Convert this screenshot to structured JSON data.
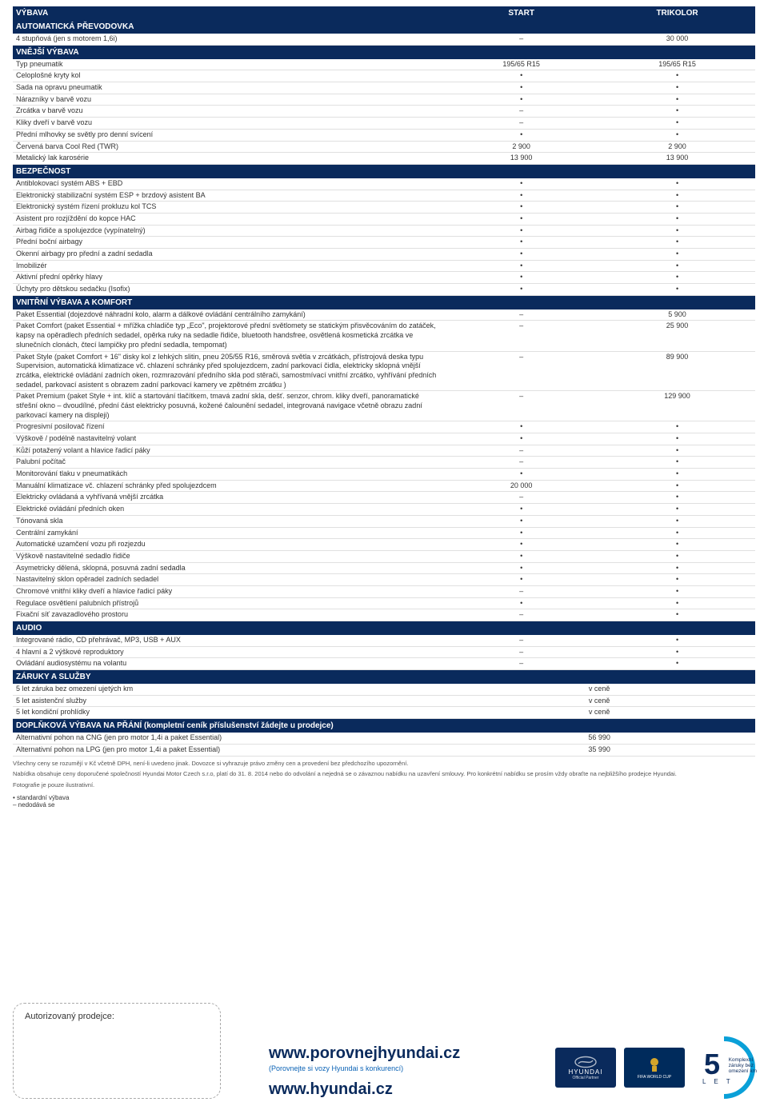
{
  "header": {
    "c0": "VÝBAVA",
    "c1": "START",
    "c2": "TRIKOLOR"
  },
  "sections": [
    {
      "title": "AUTOMATICKÁ PŘEVODOVKA",
      "rows": [
        {
          "label": "4 stupňová (jen s motorem 1,6i)",
          "v1": "–",
          "v2": "30 000"
        }
      ]
    },
    {
      "title": "VNĚJŠÍ VÝBAVA",
      "rows": [
        {
          "label": "Typ pneumatik",
          "v1": "195/65 R15",
          "v2": "195/65 R15"
        },
        {
          "label": "Celoplošné kryty kol",
          "v1": "•",
          "v2": "•"
        },
        {
          "label": "Sada na opravu pneumatik",
          "v1": "•",
          "v2": "•"
        },
        {
          "label": "Nárazníky v barvě vozu",
          "v1": "•",
          "v2": "•"
        },
        {
          "label": "Zrcátka v barvě vozu",
          "v1": "–",
          "v2": "•"
        },
        {
          "label": "Kliky dveří v barvě vozu",
          "v1": "–",
          "v2": "•"
        },
        {
          "label": "Přední mlhovky se světly pro denní svícení",
          "v1": "•",
          "v2": "•"
        },
        {
          "label": "Červená barva Cool Red (TWR)",
          "v1": "2 900",
          "v2": "2 900"
        },
        {
          "label": "Metalický lak karosérie",
          "v1": "13 900",
          "v2": "13 900"
        }
      ]
    },
    {
      "title": "BEZPEČNOST",
      "rows": [
        {
          "label": "Antiblokovací systém ABS + EBD",
          "v1": "•",
          "v2": "•"
        },
        {
          "label": "Elektronický stabilizační systém ESP + brzdový asistent BA",
          "v1": "•",
          "v2": "•"
        },
        {
          "label": "Elektronický systém řízení prokluzu kol TCS",
          "v1": "•",
          "v2": "•"
        },
        {
          "label": "Asistent pro rozjíždění do kopce HAC",
          "v1": "•",
          "v2": "•"
        },
        {
          "label": "Airbag řidiče a spolujezdce (vypínatelný)",
          "v1": "•",
          "v2": "•"
        },
        {
          "label": "Přední boční airbagy",
          "v1": "•",
          "v2": "•"
        },
        {
          "label": "Okenní airbagy pro přední a zadní sedadla",
          "v1": "•",
          "v2": "•"
        },
        {
          "label": "Imobilizér",
          "v1": "•",
          "v2": "•"
        },
        {
          "label": "Aktivní přední opěrky hlavy",
          "v1": "•",
          "v2": "•"
        },
        {
          "label": "Úchyty pro dětskou sedačku (Isofix)",
          "v1": "•",
          "v2": "•"
        }
      ]
    },
    {
      "title": "VNITŘNÍ VÝBAVA A KOMFORT",
      "rows": [
        {
          "label": "Paket Essential (dojezdové náhradní kolo, alarm a dálkové ovládání centrálního zamykání)",
          "v1": "–",
          "v2": "5 900"
        },
        {
          "label": "Paket Comfort (paket Essential + mřížka chladiče typ „Eco\", projektorové přední světlomety se statickým přisvěcováním do zatáček, kapsy na opěradlech předních sedadel, opěrka ruky na sedadle řidiče, bluetooth handsfree, osvětlená kosmetická zrcátka ve slunečních clonách, čtecí lampičky pro přední sedadla, tempomat)",
          "v1": "–",
          "v2": "25 900"
        },
        {
          "label": "Paket Style (paket Comfort + 16\" disky kol z lehkých slitin, pneu 205/55 R16, směrová světla v zrcátkách, přístrojová deska typu Supervision, automatická klimatizace vč. chlazení schránky před spolujezdcem, zadní parkovací čidla, elektricky sklopná vnější zrcátka, elektrické ovládání zadních oken, rozmrazování předního skla pod stěrači, samostmívací vnitřní zrcátko, vyhřívání předních sedadel, parkovací asistent s obrazem zadní parkovací kamery ve zpětném zrcátku )",
          "v1": "–",
          "v2": "89 900"
        },
        {
          "label": "Paket Premium (paket Style + int. klíč a startování tlačítkem, tmavá zadní skla, dešť. senzor, chrom. kliky dveří, panoramatické střešní okno – dvoudílné, přední část elektricky posuvná, kožené čalounění sedadel, integrovaná navigace včetně obrazu zadní parkovací kamery na displeji)",
          "v1": "–",
          "v2": "129 900"
        },
        {
          "label": "Progresivní posilovač řízení",
          "v1": "•",
          "v2": "•"
        },
        {
          "label": "Výškově / podélně nastavitelný volant",
          "v1": "•",
          "v2": "•"
        },
        {
          "label": "Kůží potažený volant a hlavice řadicí páky",
          "v1": "–",
          "v2": "•"
        },
        {
          "label": "Palubní počítač",
          "v1": "–",
          "v2": "•"
        },
        {
          "label": "Monitorování tlaku v pneumatikách",
          "v1": "•",
          "v2": "•"
        },
        {
          "label": "Manuální klimatizace vč. chlazení schránky před spolujezdcem",
          "v1": "20 000",
          "v2": "•"
        },
        {
          "label": "Elektricky ovládaná a vyhřívaná vnější zrcátka",
          "v1": "–",
          "v2": "•"
        },
        {
          "label": "Elektrické ovládání předních oken",
          "v1": "•",
          "v2": "•"
        },
        {
          "label": "Tónovaná skla",
          "v1": "•",
          "v2": "•"
        },
        {
          "label": "Centrální zamykání",
          "v1": "•",
          "v2": "•"
        },
        {
          "label": "Automatické uzamčení vozu při rozjezdu",
          "v1": "•",
          "v2": "•"
        },
        {
          "label": "Výškově nastavitelné sedadlo řidiče",
          "v1": "•",
          "v2": "•"
        },
        {
          "label": "Asymetricky dělená, sklopná, posuvná zadní sedadla",
          "v1": "•",
          "v2": "•"
        },
        {
          "label": "Nastavitelný sklon opěradel zadních sedadel",
          "v1": "•",
          "v2": "•"
        },
        {
          "label": "Chromové vnitřní kliky dveří a hlavice řadicí páky",
          "v1": "–",
          "v2": "•"
        },
        {
          "label": "Regulace osvětlení palubních přístrojů",
          "v1": "•",
          "v2": "•"
        },
        {
          "label": "Fixační síť zavazadlového prostoru",
          "v1": "–",
          "v2": "•"
        }
      ]
    },
    {
      "title": "AUDIO",
      "rows": [
        {
          "label": "Integrované rádio, CD přehrávač, MP3, USB + AUX",
          "v1": "–",
          "v2": "•"
        },
        {
          "label": "4 hlavní a 2 výškové reproduktory",
          "v1": "–",
          "v2": "•"
        },
        {
          "label": "Ovládání audiosystému na volantu",
          "v1": "–",
          "v2": "•"
        }
      ]
    },
    {
      "title": "ZÁRUKY A SLUŽBY",
      "rows": [
        {
          "label": "5 let záruka bez omezení ujetých km",
          "merged": "v ceně"
        },
        {
          "label": "5 let asistenční služby",
          "merged": "v ceně"
        },
        {
          "label": "5 let kondiční prohlídky",
          "merged": "v ceně"
        }
      ]
    },
    {
      "title": "DOPLŇKOVÁ VÝBAVA NA PŘÁNÍ (kompletní ceník příslušenství žádejte u prodejce)",
      "rows": [
        {
          "label": "Alternativní pohon na CNG (jen pro motor 1,4i a paket Essential)",
          "merged": "56 990"
        },
        {
          "label": "Alternativní pohon na LPG (jen pro motor 1,4i a paket Essential)",
          "merged": "35 990"
        }
      ]
    }
  ],
  "footnotes": [
    "Všechny ceny se rozumějí v Kč včetně DPH, není-li uvedeno jinak. Dovozce si vyhrazuje právo změny cen a provedení bez předchozího upozornění.",
    "Nabídka obsahuje ceny doporučené společností Hyundai Motor Czech s.r.o, platí do 31. 8. 2014 nebo do odvolání a nejedná se o závaznou nabídku na uzavření smlouvy. Pro konkrétní nabídku se prosím vždy obraťte na nejbližšího prodejce Hyundai.",
    "Fotografie je pouze ilustrativní."
  ],
  "legend": [
    "• standardní výbava",
    "– nedodává se"
  ],
  "dealer_label": "Autorizovaný prodejce:",
  "urls": {
    "compare": "www.porovnejhyundai.cz",
    "compare_sub": "(Porovnejte si vozy Hyundai s konkurencí)",
    "main": "www.hyundai.cz"
  },
  "logos": {
    "brand": "HYUNDAI",
    "partner1": "Official Partner",
    "partner2": "FIFA WORLD CUP"
  },
  "warranty": {
    "num": "5",
    "unit": "L E T",
    "line1": "Komplexní",
    "line2": "záruky bez",
    "line3": "omezení km"
  },
  "colors": {
    "section_bg": "#0a2a5c",
    "section_fg": "#ffffff",
    "row_border": "#e0e0e0",
    "link": "#0a62b5",
    "ring": "#0aa0d8"
  }
}
